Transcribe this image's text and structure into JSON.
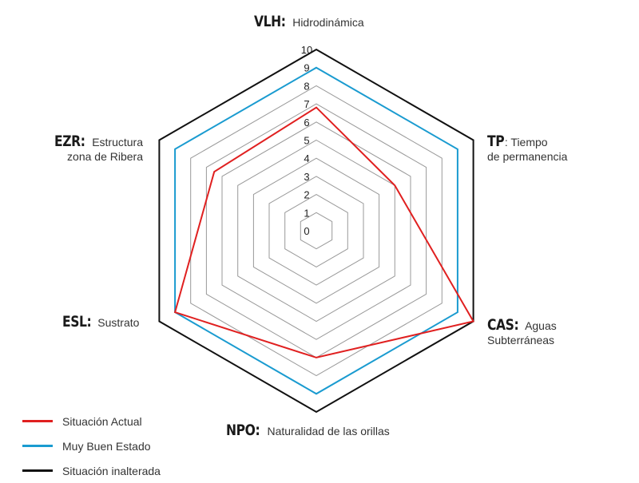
{
  "chart_data": {
    "type": "radar",
    "axes": [
      {
        "code": "VLH:",
        "name": "Hidrodinámica"
      },
      {
        "code": "TP",
        "name": ": Tiempo de permanencia"
      },
      {
        "code": "CAS:",
        "name": "Aguas Subterráneas"
      },
      {
        "code": "NPO:",
        "name": "Naturalidad de las orillas"
      },
      {
        "code": "ESL:",
        "name": "Sustrato"
      },
      {
        "code": "EZR:",
        "name": "Estructura zona de Ribera"
      }
    ],
    "rlim": [
      0,
      10
    ],
    "ticks": [
      "0",
      "1",
      "2",
      "3",
      "4",
      "5",
      "6",
      "7",
      "8",
      "9",
      "10"
    ],
    "series": [
      {
        "name": "Situación Actual",
        "color": "#e02020",
        "values": [
          6.8,
          5.0,
          10,
          7.0,
          9.0,
          6.5
        ]
      },
      {
        "name": "Muy Buen Estado",
        "color": "#1a9bd0",
        "values": [
          9,
          9,
          9,
          9,
          9,
          9
        ]
      },
      {
        "name": "Situación inalterada",
        "color": "#111111",
        "values": [
          10,
          10,
          10,
          10,
          10,
          10
        ]
      }
    ],
    "grid_color": "#999999"
  },
  "labels": {
    "vlh": {
      "code": "VLH:",
      "name": "Hidrodinámica"
    },
    "tp": {
      "code": "TP",
      "name1": ": Tiempo",
      "name2": "de permanencia"
    },
    "cas": {
      "code": "CAS:",
      "name1": "Aguas",
      "name2": "Subterráneas"
    },
    "npo": {
      "code": "NPO:",
      "name": "Naturalidad de las orillas"
    },
    "esl": {
      "code": "ESL:",
      "name": "Sustrato"
    },
    "ezr": {
      "code": "EZR:",
      "name1": "Estructura",
      "name2": "zona de Ribera"
    }
  },
  "legend": [
    {
      "label": "Situación Actual",
      "color": "#e02020"
    },
    {
      "label": "Muy Buen Estado",
      "color": "#1a9bd0"
    },
    {
      "label": "Situación inalterada",
      "color": "#111111"
    }
  ]
}
